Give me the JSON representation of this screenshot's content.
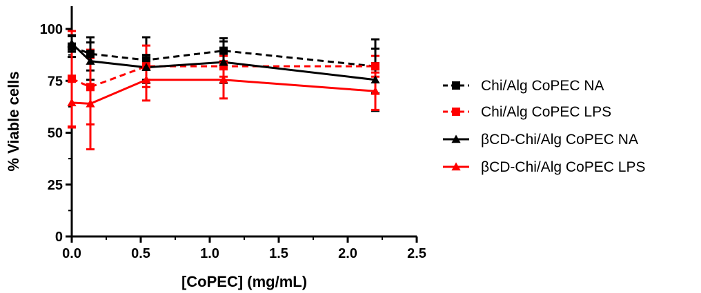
{
  "chart_data": {
    "type": "line",
    "xlabel": "[CoPEC] (mg/mL)",
    "ylabel": "% Viable cells",
    "xlim": [
      0,
      2.5
    ],
    "ylim": [
      0,
      110
    ],
    "x_ticks": [
      "0.0",
      "0.5",
      "1.0",
      "1.5",
      "2.0",
      "2.5"
    ],
    "y_ticks": [
      "0",
      "25",
      "50",
      "75",
      "100"
    ],
    "legend_position": "right",
    "grid": false,
    "series": [
      {
        "name": "Chi/Alg CoPEC NA",
        "color": "#000000",
        "marker": "square",
        "line_style": "dashed",
        "x": [
          0.0,
          0.135,
          0.54,
          1.1,
          2.2
        ],
        "y": [
          91.5,
          88.0,
          85.0,
          89.5,
          82.0
        ],
        "err": [
          5.0,
          8.0,
          11.0,
          6.0,
          13.0
        ]
      },
      {
        "name": "Chi/Alg CoPEC LPS",
        "color": "#ff0000",
        "marker": "square",
        "line_style": "dashed",
        "x": [
          0.0,
          0.135,
          0.54,
          1.1,
          2.2
        ],
        "y": [
          76.0,
          72.0,
          82.0,
          82.0,
          82.0
        ],
        "err": [
          23.0,
          18.0,
          10.0,
          5.0,
          5.0
        ]
      },
      {
        "name": "βCD-Chi/Alg CoPEC NA",
        "color": "#000000",
        "marker": "triangle",
        "line_style": "solid",
        "x": [
          0.0,
          0.135,
          0.54,
          1.1,
          2.2
        ],
        "y": [
          93.0,
          84.5,
          81.5,
          84.0,
          75.5
        ],
        "err": [
          4.0,
          9.0,
          6.0,
          10.0,
          15.0
        ]
      },
      {
        "name": "βCD-Chi/Alg CoPEC LPS",
        "color": "#ff0000",
        "marker": "triangle",
        "line_style": "solid",
        "x": [
          0.0,
          0.135,
          0.54,
          1.1,
          2.2
        ],
        "y": [
          64.5,
          64.0,
          75.5,
          75.5,
          70.0
        ],
        "err": [
          12.0,
          22.0,
          10.0,
          9.0,
          9.0
        ]
      }
    ]
  }
}
